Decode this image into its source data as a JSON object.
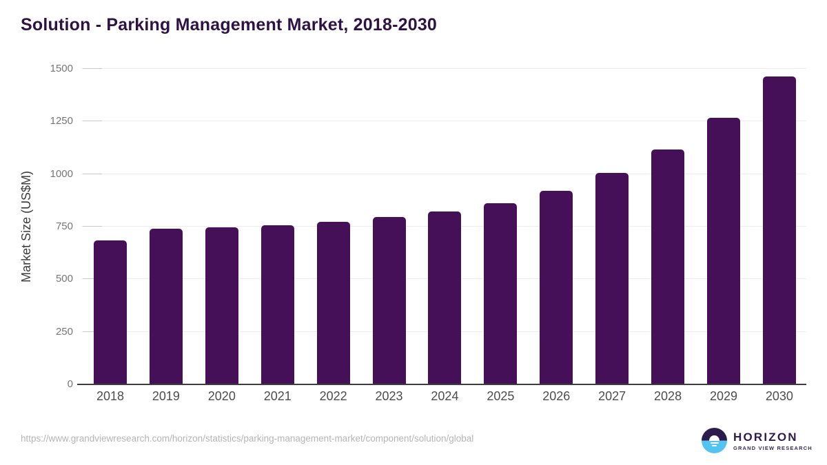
{
  "page": {
    "title": "Solution - Parking Management Market, 2018-2030"
  },
  "chart_data": {
    "type": "bar",
    "title": "Solution - Parking Management Market, 2018-2030",
    "categories": [
      "2018",
      "2019",
      "2020",
      "2021",
      "2022",
      "2023",
      "2024",
      "2025",
      "2026",
      "2027",
      "2028",
      "2029",
      "2030"
    ],
    "values": [
      685,
      739,
      748,
      757,
      772,
      796,
      823,
      862,
      921,
      1005,
      1117,
      1267,
      1465
    ],
    "xlabel": "",
    "ylabel": "Market Size (US$M)",
    "ylim": [
      0,
      1500
    ],
    "yticks": [
      0,
      250,
      500,
      750,
      1000,
      1250,
      1500
    ],
    "grid": true,
    "legend": "none",
    "bar_color": "#451057"
  },
  "colors": {
    "title_text": "#2f1245",
    "bar": "#451057",
    "gridline": "#ededed",
    "axis_line": "#3d3d3d",
    "logo_purple": "#2d1b4e",
    "logo_blue": "#55c3f0"
  },
  "footer": {
    "source_url": "https://www.grandviewresearch.com/horizon/statistics/parking-management-market/component/solution/global",
    "brand": {
      "name": "HORIZON",
      "tagline": "GRAND VIEW RESEARCH"
    }
  }
}
